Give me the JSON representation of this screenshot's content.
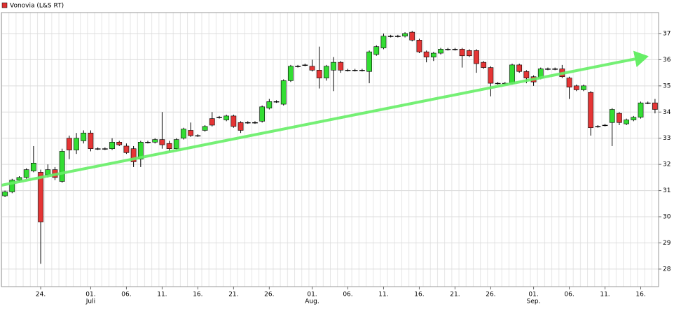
{
  "chart_data": {
    "type": "candlestick",
    "title": "Vonovia (L&S RT)",
    "legend_color": "#e03030",
    "up_color": "#33dd33",
    "down_color": "#e53535",
    "grid": true,
    "xlim": [
      -0.5,
      91.5
    ],
    "ylim": [
      27.33,
      37.8
    ],
    "yticks": [
      28,
      29,
      30,
      31,
      32,
      33,
      34,
      35,
      36,
      37
    ],
    "xticks": [
      {
        "value": 5,
        "label": "24."
      },
      {
        "value": 12,
        "label": "01."
      },
      {
        "value": 17,
        "label": "06."
      },
      {
        "value": 22,
        "label": "11."
      },
      {
        "value": 27,
        "label": "16."
      },
      {
        "value": 32,
        "label": "21."
      },
      {
        "value": 37,
        "label": "26."
      },
      {
        "value": 43,
        "label": "01."
      },
      {
        "value": 48,
        "label": "06."
      },
      {
        "value": 53,
        "label": "11."
      },
      {
        "value": 58,
        "label": "16."
      },
      {
        "value": 63,
        "label": "21."
      },
      {
        "value": 68,
        "label": "26."
      },
      {
        "value": 74,
        "label": "01."
      },
      {
        "value": 79,
        "label": "06."
      },
      {
        "value": 84,
        "label": "11."
      },
      {
        "value": 89,
        "label": "16."
      }
    ],
    "month_ticks": [
      {
        "value": 12,
        "label": "Juli"
      },
      {
        "value": 43,
        "label": "Aug."
      },
      {
        "value": 74,
        "label": "Sep."
      }
    ],
    "open": [
      30.8,
      30.95,
      31.4,
      31.5,
      31.75,
      31.7,
      31.6,
      31.8,
      31.35,
      33.0,
      32.55,
      32.9,
      33.2,
      32.6,
      32.6,
      32.6,
      32.85,
      32.7,
      32.6,
      32.2,
      32.85,
      32.85,
      32.95,
      32.8,
      32.6,
      33.0,
      33.3,
      33.1,
      33.3,
      33.75,
      33.8,
      33.7,
      33.85,
      33.6,
      33.6,
      33.6,
      33.65,
      34.15,
      34.4,
      34.3,
      35.2,
      35.75,
      35.8,
      35.75,
      35.6,
      35.3,
      35.6,
      35.9,
      35.6,
      35.6,
      35.6,
      35.55,
      36.2,
      36.45,
      36.9,
      36.9,
      36.9,
      37.05,
      36.75,
      36.3,
      36.1,
      36.25,
      36.4,
      36.4,
      36.4,
      36.35,
      36.35,
      35.9,
      35.7,
      35.1,
      35.1,
      35.1,
      35.8,
      35.55,
      35.35,
      35.3,
      35.65,
      35.65,
      35.65,
      35.3,
      35.0,
      34.85,
      34.75,
      33.45,
      33.5,
      33.6,
      33.95,
      33.55,
      33.7,
      33.8,
      34.35,
      34.35
    ],
    "high": [
      31.0,
      31.45,
      31.55,
      31.85,
      32.7,
      31.8,
      32.0,
      31.9,
      32.6,
      33.1,
      33.2,
      33.3,
      33.3,
      32.65,
      32.65,
      33.0,
      32.9,
      32.8,
      32.7,
      32.9,
      32.9,
      33.0,
      34.0,
      32.9,
      33.0,
      33.4,
      33.6,
      33.15,
      33.5,
      34.0,
      33.85,
      33.9,
      33.9,
      33.65,
      33.65,
      33.65,
      34.25,
      34.5,
      34.45,
      35.25,
      35.8,
      35.8,
      35.85,
      36.0,
      36.5,
      35.8,
      36.1,
      35.95,
      35.65,
      35.65,
      35.65,
      36.35,
      36.55,
      37.0,
      36.95,
      36.95,
      37.05,
      37.1,
      36.8,
      36.35,
      36.3,
      36.45,
      36.45,
      36.45,
      36.45,
      36.4,
      36.4,
      35.95,
      35.75,
      35.15,
      35.15,
      35.85,
      35.85,
      35.6,
      35.4,
      35.7,
      35.7,
      35.7,
      35.8,
      35.35,
      35.05,
      35.05,
      34.8,
      33.5,
      33.55,
      34.15,
      34.0,
      33.75,
      33.85,
      34.4,
      34.4,
      34.5
    ],
    "low": [
      30.75,
      30.9,
      31.35,
      31.45,
      31.7,
      28.2,
      31.5,
      31.4,
      31.3,
      32.2,
      32.4,
      32.8,
      32.5,
      32.55,
      32.55,
      32.55,
      32.7,
      32.4,
      31.9,
      31.9,
      32.8,
      32.8,
      32.6,
      32.5,
      32.55,
      32.95,
      33.05,
      33.05,
      33.25,
      33.45,
      33.75,
      33.65,
      33.4,
      33.2,
      33.55,
      33.55,
      33.6,
      34.1,
      34.35,
      34.25,
      35.15,
      35.7,
      35.75,
      35.55,
      34.9,
      35.2,
      34.8,
      35.5,
      35.55,
      35.55,
      35.55,
      35.1,
      36.15,
      36.4,
      36.85,
      36.85,
      36.85,
      36.7,
      36.25,
      35.9,
      35.95,
      36.2,
      36.35,
      36.35,
      35.7,
      36.1,
      35.5,
      35.65,
      34.6,
      35.05,
      35.05,
      35.05,
      35.5,
      35.1,
      35.0,
      35.25,
      35.6,
      35.6,
      35.3,
      34.5,
      34.8,
      34.8,
      33.1,
      33.4,
      33.45,
      32.7,
      33.5,
      33.5,
      33.65,
      33.75,
      34.3,
      33.95
    ],
    "close": [
      30.95,
      31.4,
      31.5,
      31.8,
      32.05,
      29.8,
      31.8,
      31.5,
      32.5,
      32.55,
      33.0,
      33.2,
      32.6,
      32.6,
      32.6,
      32.85,
      32.75,
      32.45,
      32.1,
      32.85,
      32.85,
      32.95,
      32.75,
      32.6,
      32.95,
      33.35,
      33.1,
      33.1,
      33.45,
      33.5,
      33.8,
      33.85,
      33.45,
      33.3,
      33.6,
      33.6,
      34.2,
      34.4,
      34.4,
      35.2,
      35.75,
      35.75,
      35.8,
      35.6,
      35.3,
      35.75,
      35.9,
      35.6,
      35.6,
      35.6,
      35.6,
      36.3,
      36.5,
      36.9,
      36.9,
      36.9,
      37.0,
      36.75,
      36.3,
      36.1,
      36.25,
      36.4,
      36.4,
      36.4,
      36.15,
      36.15,
      35.85,
      35.7,
      35.1,
      35.1,
      35.1,
      35.8,
      35.55,
      35.3,
      35.15,
      35.65,
      35.65,
      35.65,
      35.35,
      34.95,
      34.85,
      35.0,
      33.4,
      33.45,
      33.5,
      34.1,
      33.6,
      33.7,
      33.8,
      34.35,
      34.35,
      34.1
    ]
  }
}
